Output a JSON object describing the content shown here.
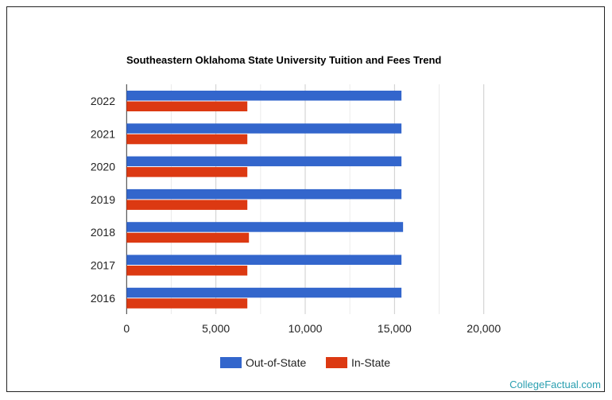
{
  "chart_data": {
    "type": "bar",
    "orientation": "horizontal",
    "title": "Southeastern Oklahoma State University Tuition and Fees Trend",
    "categories": [
      "2022",
      "2021",
      "2020",
      "2019",
      "2018",
      "2017",
      "2016"
    ],
    "series": [
      {
        "name": "Out-of-State",
        "color": "#3366cc",
        "values": [
          15390,
          15390,
          15390,
          15390,
          15480,
          15390,
          15390
        ]
      },
      {
        "name": "In-State",
        "color": "#dc3912",
        "values": [
          6760,
          6760,
          6760,
          6760,
          6850,
          6760,
          6760
        ]
      }
    ],
    "xlim": [
      0,
      20000
    ],
    "xticks": [
      0,
      5000,
      10000,
      15000,
      20000
    ],
    "xtick_labels": [
      "0",
      "5,000",
      "10,000",
      "15,000",
      "20,000"
    ],
    "grid": true,
    "legend": "bottom"
  },
  "brand": "CollegeFactual.com"
}
